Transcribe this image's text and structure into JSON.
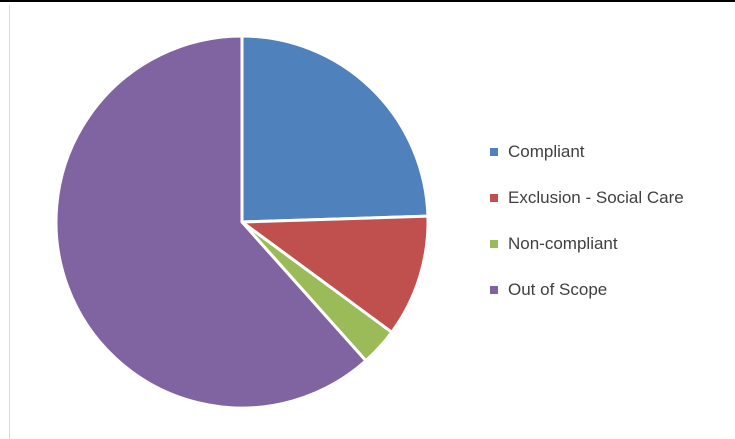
{
  "chart_data": {
    "type": "pie",
    "categories": [
      "Compliant",
      "Exclusion - Social Care",
      "Non-compliant",
      "Out of Scope"
    ],
    "values": [
      24.5,
      10.6,
      3.3,
      61.6
    ],
    "colors": [
      "#4f81bd",
      "#c0504d",
      "#9bbb59",
      "#8064a2"
    ],
    "legend_position": "right",
    "title": ""
  }
}
